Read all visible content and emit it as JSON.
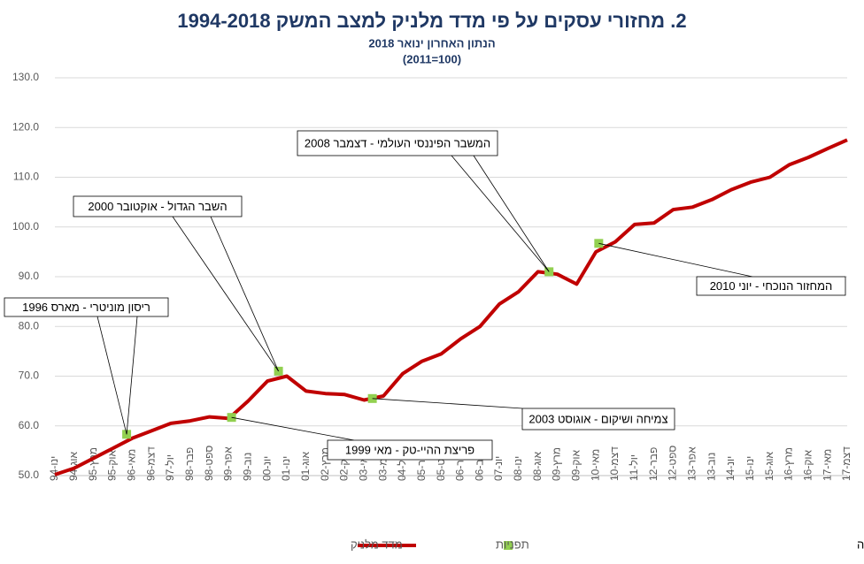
{
  "chart_data": {
    "type": "line",
    "title": "2. מחזורי עסקים על פי מדד מלניק למצב המשק 1994-2018",
    "subtitle": [
      "הנתון האחרון ינואר 2018",
      "(2011=100)"
    ],
    "footer": "פרופ' רפי מלניק, המרכז הבינתחומי הרצליה",
    "xlim": [
      "1994-01",
      "2017-12"
    ],
    "xticks": [
      {
        "value": "1994-01",
        "label": "ינו-94"
      },
      {
        "value": "1994-08",
        "label": "אוג-94"
      },
      {
        "value": "1995-03",
        "label": "מרץ-95"
      },
      {
        "value": "1995-10",
        "label": "אוק-95"
      },
      {
        "value": "1996-05",
        "label": "מאי-96"
      },
      {
        "value": "1996-12",
        "label": "דצמ-96"
      },
      {
        "value": "1997-07",
        "label": "יול-97"
      },
      {
        "value": "1998-02",
        "label": "פבר-98"
      },
      {
        "value": "1998-09",
        "label": "ספט-98"
      },
      {
        "value": "1999-04",
        "label": "אפר-99"
      },
      {
        "value": "1999-11",
        "label": "נוב-99"
      },
      {
        "value": "2000-06",
        "label": "יונ-00"
      },
      {
        "value": "2001-01",
        "label": "ינו-01"
      },
      {
        "value": "2001-08",
        "label": "אוג-01"
      },
      {
        "value": "2002-03",
        "label": "מרץ-02"
      },
      {
        "value": "2002-10",
        "label": "אוק-02"
      },
      {
        "value": "2003-05",
        "label": "מאי-03"
      },
      {
        "value": "2003-12",
        "label": "דצמ-03"
      },
      {
        "value": "2004-07",
        "label": "יול-04"
      },
      {
        "value": "2005-02",
        "label": "פבר-05"
      },
      {
        "value": "2005-09",
        "label": "ספט-05"
      },
      {
        "value": "2006-04",
        "label": "אפר-06"
      },
      {
        "value": "2006-11",
        "label": "נוב-06"
      },
      {
        "value": "2007-06",
        "label": "יונ-07"
      },
      {
        "value": "2008-01",
        "label": "ינו-08"
      },
      {
        "value": "2008-08",
        "label": "אוג-08"
      },
      {
        "value": "2009-03",
        "label": "מרץ-09"
      },
      {
        "value": "2009-10",
        "label": "אוק-09"
      },
      {
        "value": "2010-05",
        "label": "מאי-10"
      },
      {
        "value": "2010-12",
        "label": "דצמ-10"
      },
      {
        "value": "2011-07",
        "label": "יול-11"
      },
      {
        "value": "2012-02",
        "label": "פבר-12"
      },
      {
        "value": "2012-09",
        "label": "ספט-12"
      },
      {
        "value": "2013-04",
        "label": "אפר-13"
      },
      {
        "value": "2013-11",
        "label": "נוב-13"
      },
      {
        "value": "2014-06",
        "label": "יונ-14"
      },
      {
        "value": "2015-01",
        "label": "ינו-15"
      },
      {
        "value": "2015-08",
        "label": "אוג-15"
      },
      {
        "value": "2016-03",
        "label": "מרץ-16"
      },
      {
        "value": "2016-10",
        "label": "אוק-16"
      },
      {
        "value": "2017-05",
        "label": "מאי-17"
      },
      {
        "value": "2017-12",
        "label": "דצמ-17"
      }
    ],
    "ylim": [
      50,
      130
    ],
    "yticks": [
      {
        "value": 50,
        "label": "50.0"
      },
      {
        "value": 60,
        "label": "60.0"
      },
      {
        "value": 70,
        "label": "70.0"
      },
      {
        "value": 80,
        "label": "80.0"
      },
      {
        "value": 90,
        "label": "90.0"
      },
      {
        "value": 100,
        "label": "100.0"
      },
      {
        "value": 110,
        "label": "110.0"
      },
      {
        "value": 120,
        "label": "120.0"
      },
      {
        "value": 130,
        "label": "130.0"
      }
    ],
    "grid": true,
    "series": [
      {
        "name": "מדד מלניק",
        "color": "#c00000",
        "x": [
          "1994-01",
          "1994-08",
          "1995-03",
          "1995-10",
          "1996-05",
          "1996-12",
          "1997-07",
          "1998-02",
          "1998-09",
          "1999-04",
          "1999-11",
          "2000-06",
          "2001-01",
          "2001-08",
          "2002-03",
          "2002-10",
          "2003-05",
          "2003-12",
          "2004-07",
          "2005-02",
          "2005-09",
          "2006-04",
          "2006-11",
          "2007-06",
          "2008-01",
          "2008-08",
          "2009-03",
          "2009-10",
          "2010-05",
          "2010-12",
          "2011-07",
          "2012-02",
          "2012-09",
          "2013-04",
          "2013-11",
          "2014-06",
          "2015-01",
          "2015-08",
          "2016-03",
          "2016-10",
          "2017-05",
          "2017-12"
        ],
        "values": [
          50.2,
          51.5,
          53.5,
          55.5,
          57.5,
          59,
          60.5,
          61,
          61.8,
          61.5,
          65,
          69,
          70,
          67,
          66.5,
          66.3,
          65.2,
          66,
          70.5,
          73,
          74.5,
          77.5,
          80,
          84.5,
          87,
          91,
          90.5,
          88.5,
          95,
          97,
          100.5,
          100.8,
          103.5,
          104,
          105.5,
          107.5,
          109,
          110,
          112.5,
          114,
          115.8,
          117.5
        ]
      },
      {
        "name": "תפניות",
        "color": "#92d050",
        "marker": "square",
        "x": [
          "1996-03",
          "1999-05",
          "2000-10",
          "2003-08",
          "2008-12",
          "2010-06"
        ],
        "values": [
          58.3,
          61.7,
          71,
          65.5,
          91,
          96.7
        ]
      }
    ],
    "annotations": [
      {
        "text": "ריסון מוניטרי - מארס 1996",
        "point": 0
      },
      {
        "text": "פריצת ההיי-טק - מאי 1999",
        "point": 1
      },
      {
        "text": "השבר הגדול - אוקטובר 2000",
        "point": 2
      },
      {
        "text": "צמיחה ושיקום - אוגוסט 2003",
        "point": 3
      },
      {
        "text": "המשבר הפיננסי העולמי - דצמבר 2008",
        "point": 4
      },
      {
        "text": "המחזור הנוכחי - יוני 2010",
        "point": 5
      }
    ],
    "legend": "bottom"
  }
}
